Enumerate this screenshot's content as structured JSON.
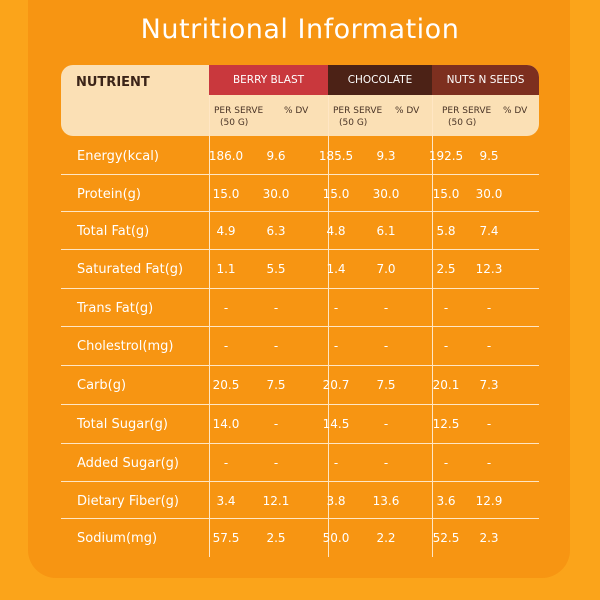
{
  "title": "Nutritional Information",
  "header": {
    "nutrient_label": "NUTRIENT",
    "products": [
      {
        "name": "BERRY BLAST",
        "per_serve": "PER SERVE",
        "serve_size": "(50 G)",
        "dv": "% DV",
        "color": "#c9383d"
      },
      {
        "name": "CHOCOLATE",
        "per_serve": "PER SERVE",
        "serve_size": "(50 G)",
        "dv": "% DV",
        "color": "#4c2216"
      },
      {
        "name": "NUTS N SEEDS",
        "per_serve": "PER SERVE",
        "serve_size": "(50 G)",
        "dv": "% DV",
        "color": "#7d2f1f"
      }
    ]
  },
  "rows": [
    {
      "label": "Energy(kcal)",
      "values": [
        "186.0",
        "9.6",
        "185.5",
        "9.3",
        "192.5",
        "9.5"
      ]
    },
    {
      "label": "Protein(g)",
      "values": [
        "15.0",
        "30.0",
        "15.0",
        "30.0",
        "15.0",
        "30.0"
      ]
    },
    {
      "label": "Total Fat(g)",
      "values": [
        "4.9",
        "6.3",
        "4.8",
        "6.1",
        "5.8",
        "7.4"
      ]
    },
    {
      "label": "Saturated Fat(g)",
      "values": [
        "1.1",
        "5.5",
        "1.4",
        "7.0",
        "2.5",
        "12.3"
      ]
    },
    {
      "label": "Trans Fat(g)",
      "values": [
        "-",
        "-",
        "-",
        "-",
        "-",
        "-"
      ]
    },
    {
      "label": "Cholestrol(mg)",
      "values": [
        "-",
        "-",
        "-",
        "-",
        "-",
        "-"
      ]
    },
    {
      "label": "Carb(g)",
      "values": [
        "20.5",
        "7.5",
        "20.7",
        "7.5",
        "20.1",
        "7.3"
      ]
    },
    {
      "label": "Total Sugar(g)",
      "values": [
        "14.0",
        "-",
        "14.5",
        "-",
        "12.5",
        "-"
      ]
    },
    {
      "label": "Added Sugar(g)",
      "values": [
        "-",
        "-",
        "-",
        "-",
        "-",
        "-"
      ]
    },
    {
      "label": "Dietary Fiber(g)",
      "values": [
        "3.4",
        "12.1",
        "3.8",
        "13.6",
        "3.6",
        "12.9"
      ]
    },
    {
      "label": "Sodium(mg)",
      "values": [
        "57.5",
        "2.5",
        "50.0",
        "2.2",
        "52.5",
        "2.3"
      ]
    }
  ],
  "colors": {
    "background": "#fba41a",
    "panel": "#f79512",
    "header_bg": "#fbe0b5",
    "text": "#ffffff"
  }
}
